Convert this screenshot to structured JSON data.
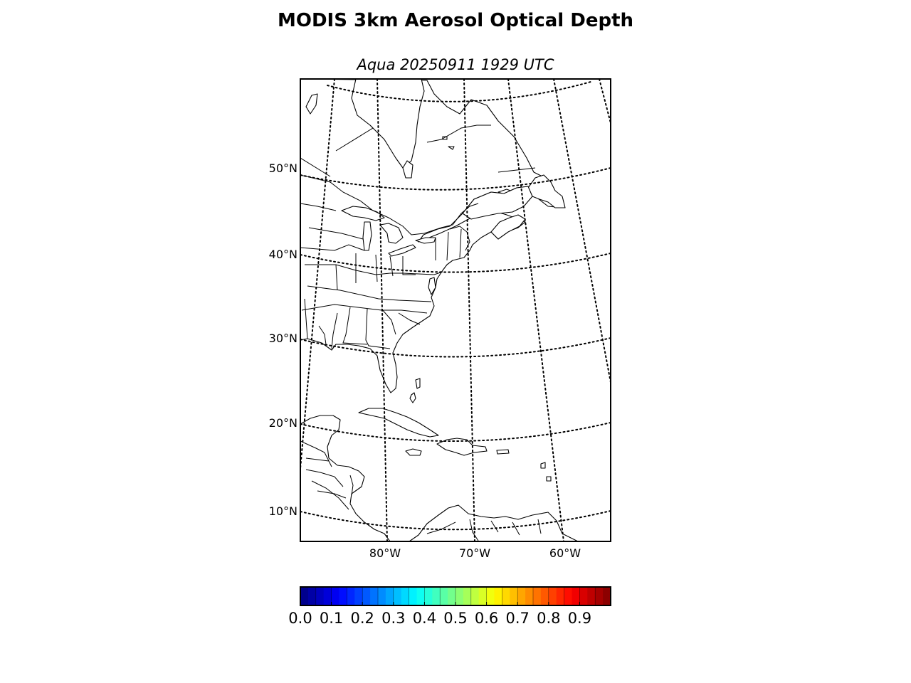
{
  "figure": {
    "title": "MODIS 3km Aerosol Optical Depth",
    "subtitle": "Aqua 20250911 1929 UTC"
  },
  "map": {
    "projection": "lambert-conic",
    "graticule_style": "dotted",
    "latitude_labels": [
      {
        "value": 50,
        "text": "50°N"
      },
      {
        "value": 40,
        "text": "40°N"
      },
      {
        "value": 30,
        "text": "30°N"
      },
      {
        "value": 20,
        "text": "20°N"
      },
      {
        "value": 10,
        "text": "10°N"
      }
    ],
    "longitude_labels": [
      {
        "value": -80,
        "text": "80°W"
      },
      {
        "value": -70,
        "text": "70°W"
      },
      {
        "value": -60,
        "text": "60°W"
      }
    ],
    "features": [
      "coastlines",
      "country-borders",
      "state-borders",
      "great-lakes"
    ]
  },
  "colorbar": {
    "colormap": "jet",
    "range": [
      0.0,
      1.0
    ],
    "tick_labels": [
      "0.0",
      "0.1",
      "0.2",
      "0.3",
      "0.4",
      "0.5",
      "0.6",
      "0.7",
      "0.8",
      "0.9"
    ]
  },
  "colors": {
    "ocean": "#ffffff",
    "outline": "#000000",
    "jet_stops": [
      "#00007f",
      "#0000ff",
      "#007fff",
      "#00ffff",
      "#7fff7f",
      "#ffff00",
      "#ff7f00",
      "#ff0000",
      "#7f0000"
    ]
  }
}
